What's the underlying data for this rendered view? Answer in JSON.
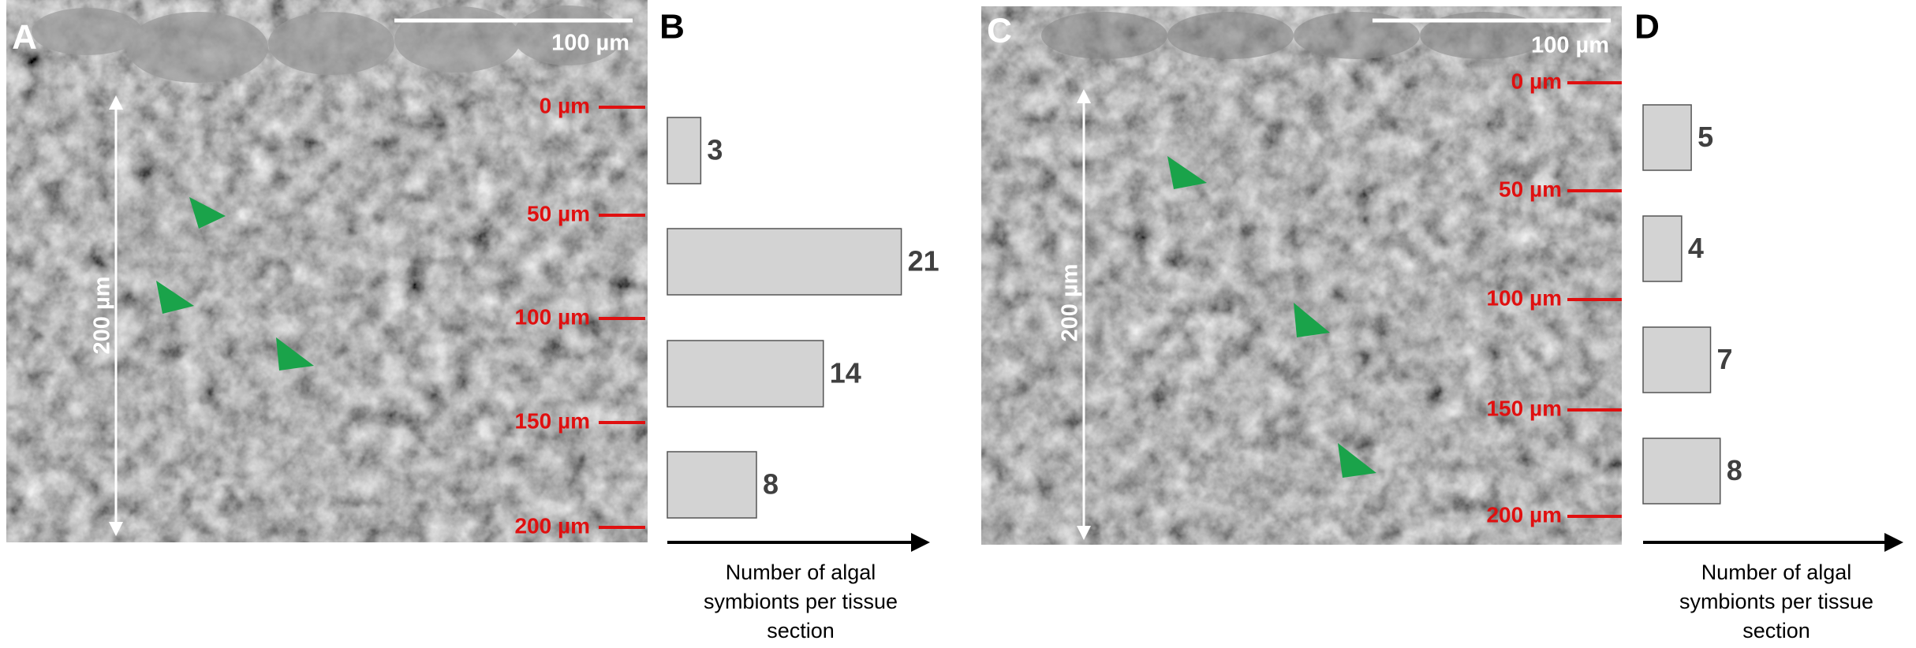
{
  "images": [
    {
      "panel": "A",
      "scale_bar": "100 µm",
      "depth_span": "200 µm",
      "depth_labels": [
        "0 µm",
        "50 µm",
        "100 µm",
        "150 µm",
        "200 µm"
      ]
    },
    {
      "panel": "C",
      "scale_bar": "100 µm",
      "depth_span": "200 µm",
      "depth_labels": [
        "0 µm",
        "50 µm",
        "100 µm",
        "150 µm",
        "200 µm"
      ]
    }
  ],
  "chart_data": [
    {
      "type": "bar",
      "orientation": "horizontal",
      "panel": "B",
      "values": [
        3,
        21,
        14,
        8
      ],
      "color": "#d3d3d3",
      "xlim": [
        0,
        24
      ],
      "x_label": "Number of algal symbionts per tissue section"
    },
    {
      "type": "bar",
      "orientation": "horizontal",
      "panel": "D",
      "values": [
        5,
        4,
        7,
        8
      ],
      "color": "#d3d3d3",
      "xlim": [
        0,
        27.5
      ],
      "x_label": "Number of algal symbionts per tissue section"
    }
  ]
}
